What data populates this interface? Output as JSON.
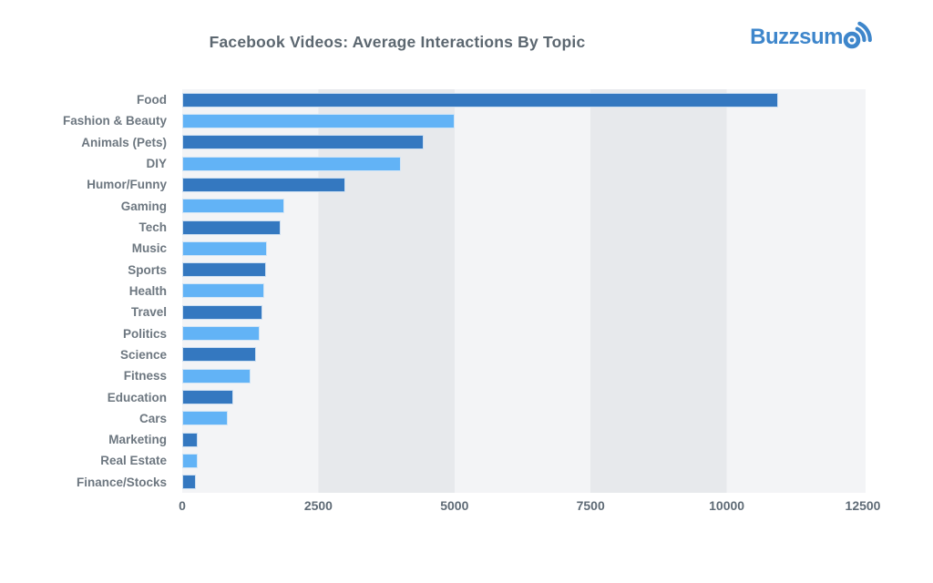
{
  "title": "Facebook Videos: Average Interactions By Topic",
  "logo": {
    "text": "Buzzsum",
    "icon": "broadcast-o-icon"
  },
  "colors": {
    "bar_dark": "#3478c0",
    "bar_light": "#62b3f6",
    "band_light": "#f3f4f6",
    "band_dark": "#e7e9ec",
    "title_text": "#5c6770",
    "label_text": "#6d7780",
    "tick_text": "#5f6b76",
    "logo_blue": "#3e86cb"
  },
  "chart_data": {
    "type": "bar",
    "orientation": "horizontal",
    "title": "Facebook Videos: Average Interactions By Topic",
    "xlabel": "",
    "ylabel": "",
    "xlim": [
      0,
      12500
    ],
    "xticks": [
      0,
      2500,
      5000,
      7500,
      10000,
      12500
    ],
    "grid": "alternating-column-bands",
    "legend": "none",
    "bar_color_pattern": [
      "#3478c0",
      "#62b3f6"
    ],
    "categories": [
      "Food",
      "Fashion & Beauty",
      "Animals (Pets)",
      "DIY",
      "Humor/Funny",
      "Gaming",
      "Tech",
      "Music",
      "Sports",
      "Health",
      "Travel",
      "Politics",
      "Science",
      "Fitness",
      "Education",
      "Cars",
      "Marketing",
      "Real Estate",
      "Finance/Stocks"
    ],
    "values": [
      10950,
      5000,
      4430,
      4010,
      2990,
      1880,
      1810,
      1550,
      1540,
      1500,
      1470,
      1430,
      1360,
      1250,
      940,
      840,
      290,
      280,
      250
    ]
  }
}
